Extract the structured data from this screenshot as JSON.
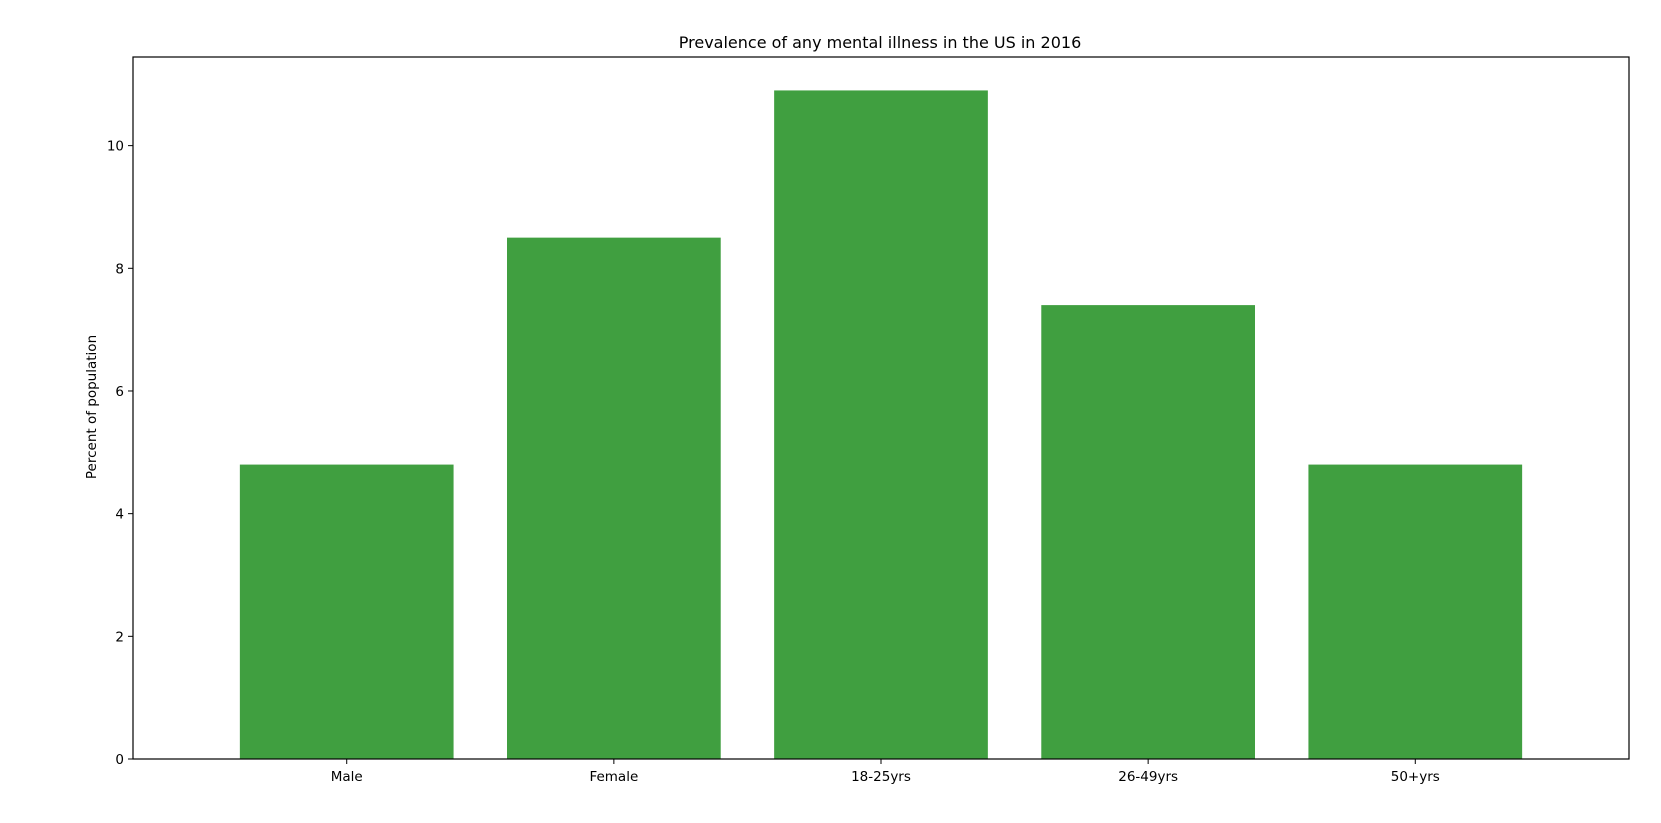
{
  "chart_data": {
    "type": "bar",
    "title": "Prevalence of any mental illness in the US in 2016",
    "xlabel": "",
    "ylabel": "Percent of population",
    "categories": [
      "Male",
      "Female",
      "18-25yrs",
      "26-49yrs",
      "50+yrs"
    ],
    "values": [
      4.8,
      8.5,
      10.9,
      7.4,
      4.8
    ],
    "ylim": [
      0,
      11.445
    ],
    "yticks": [
      "0",
      "2",
      "4",
      "6",
      "8",
      "10"
    ],
    "bar_color": "#409f40",
    "grid": false,
    "legend": "none"
  }
}
